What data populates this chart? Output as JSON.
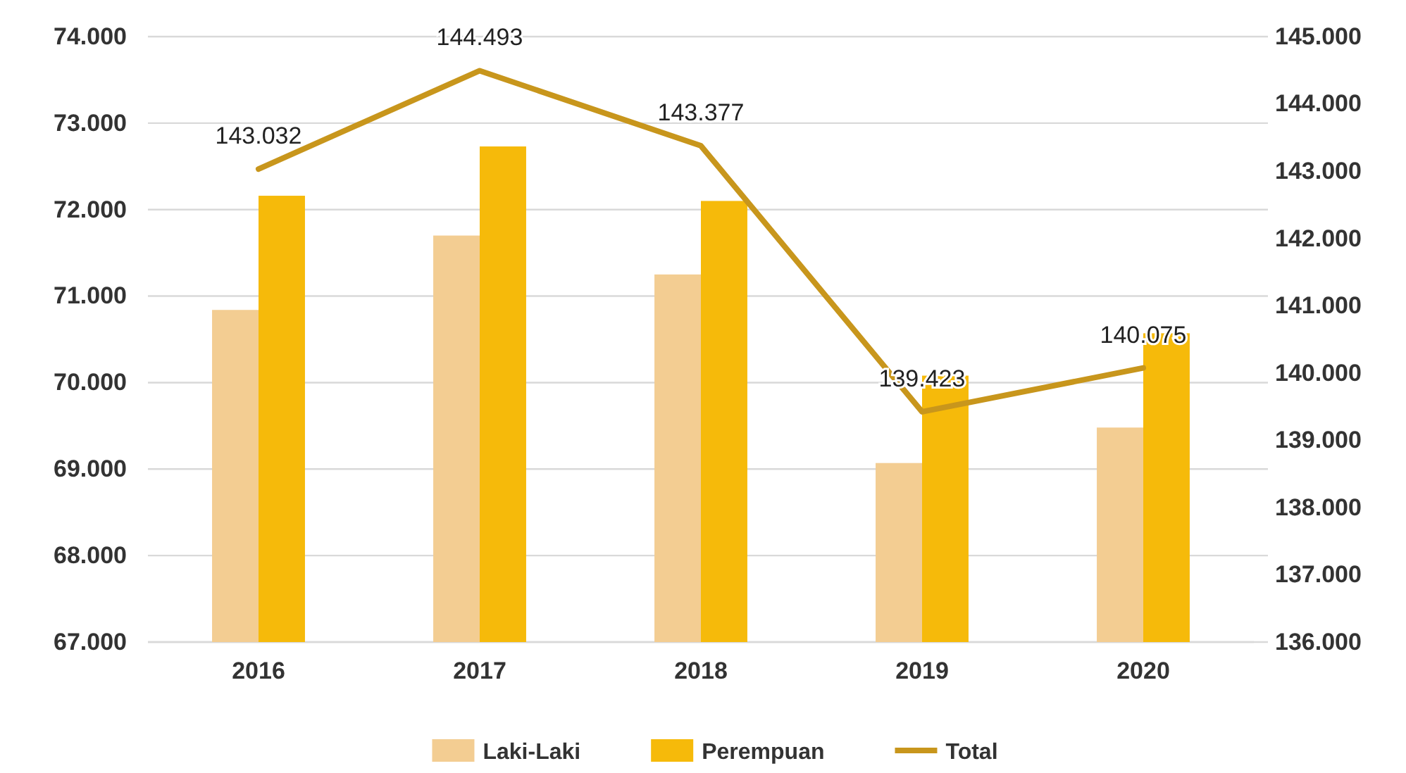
{
  "chart_data": {
    "type": "bar",
    "categories": [
      "2016",
      "2017",
      "2018",
      "2019",
      "2020"
    ],
    "series": [
      {
        "name": "Laki-Laki",
        "color": "#f3cd92",
        "values": [
          70840,
          71700,
          71250,
          69070,
          69480
        ]
      },
      {
        "name": "Perempuan",
        "color": "#f6ba0a",
        "values": [
          72160,
          72730,
          72100,
          70080,
          70570
        ]
      },
      {
        "name": "Total",
        "type": "line",
        "axis": "y2",
        "color": "#c8961c",
        "values": [
          143032,
          144493,
          143377,
          139423,
          140075
        ],
        "value_labels": [
          "143.032",
          "144.493",
          "143.377",
          "139.423",
          "140.075"
        ]
      }
    ],
    "ylim": [
      67000,
      74000
    ],
    "yticks": [
      {
        "value": 67000,
        "label": "67.000"
      },
      {
        "value": 68000,
        "label": "68.000"
      },
      {
        "value": 69000,
        "label": "69.000"
      },
      {
        "value": 70000,
        "label": "70.000"
      },
      {
        "value": 71000,
        "label": "71.000"
      },
      {
        "value": 72000,
        "label": "72.000"
      },
      {
        "value": 73000,
        "label": "73.000"
      },
      {
        "value": 74000,
        "label": "74.000"
      }
    ],
    "y2lim": [
      136000,
      145000
    ],
    "y2ticks": [
      {
        "value": 136000,
        "label": "136.000"
      },
      {
        "value": 137000,
        "label": "137.000"
      },
      {
        "value": 138000,
        "label": "138.000"
      },
      {
        "value": 139000,
        "label": "139.000"
      },
      {
        "value": 140000,
        "label": "140.000"
      },
      {
        "value": 141000,
        "label": "141.000"
      },
      {
        "value": 142000,
        "label": "142.000"
      },
      {
        "value": 143000,
        "label": "143.000"
      },
      {
        "value": 144000,
        "label": "144.000"
      },
      {
        "value": 145000,
        "label": "145.000"
      }
    ],
    "grid": "y",
    "legend": "bottom",
    "marker": "none"
  }
}
